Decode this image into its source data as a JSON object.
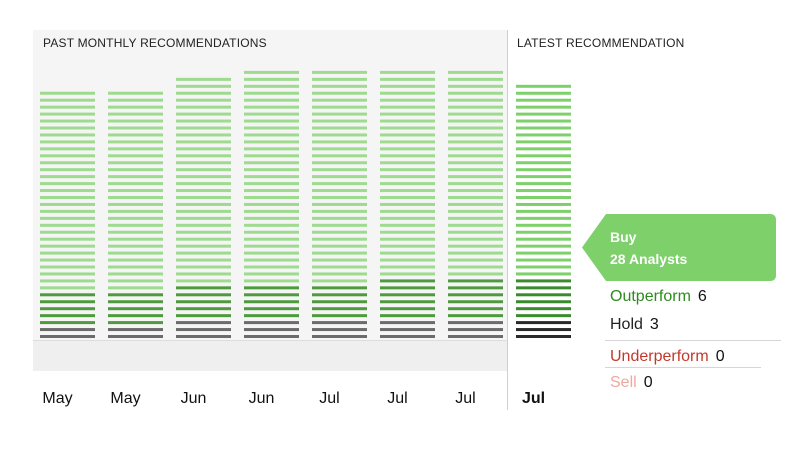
{
  "colors": {
    "buy": "#9edb8f",
    "outperform": "#4f9a3e",
    "hold": "#6b6b6b",
    "buy_latest": "#7ed06b",
    "outperform_latest": "#3a8a2e",
    "hold_latest": "#2a2a2a",
    "underperform": "#c0392b",
    "sell": "#f0a7a0",
    "outperform_label": "#2e8b1f",
    "hold_label": "#222222"
  },
  "headings": {
    "past": "PAST MONTHLY RECOMMENDATIONS",
    "latest": "LATEST RECOMMENDATION"
  },
  "flag": {
    "rating": "Buy",
    "analysts": "28 Analysts"
  },
  "legend": [
    {
      "label": "Outperform",
      "count": "6"
    },
    {
      "label": "Hold",
      "count": "3"
    },
    {
      "label": "Underperform",
      "count": "0"
    },
    {
      "label": "Sell",
      "count": "0"
    }
  ],
  "chart_data": {
    "type": "bar",
    "stacked": true,
    "categories": [
      "May",
      "May",
      "Jun",
      "Jun",
      "Jul",
      "Jul",
      "Jul",
      "Jul"
    ],
    "series": [
      {
        "name": "Sell",
        "values": [
          0,
          0,
          0,
          0,
          0,
          0,
          0,
          0
        ]
      },
      {
        "name": "Underperform",
        "values": [
          0,
          0,
          0,
          0,
          0,
          0,
          0,
          0
        ]
      },
      {
        "name": "Hold",
        "values": [
          2,
          2,
          3,
          3,
          3,
          3,
          3,
          3
        ]
      },
      {
        "name": "Outperform",
        "values": [
          5,
          5,
          5,
          5,
          5,
          6,
          6,
          6
        ]
      },
      {
        "name": "Buy",
        "values": [
          29,
          29,
          30,
          31,
          31,
          30,
          30,
          28
        ]
      }
    ],
    "latest_index": 7
  }
}
